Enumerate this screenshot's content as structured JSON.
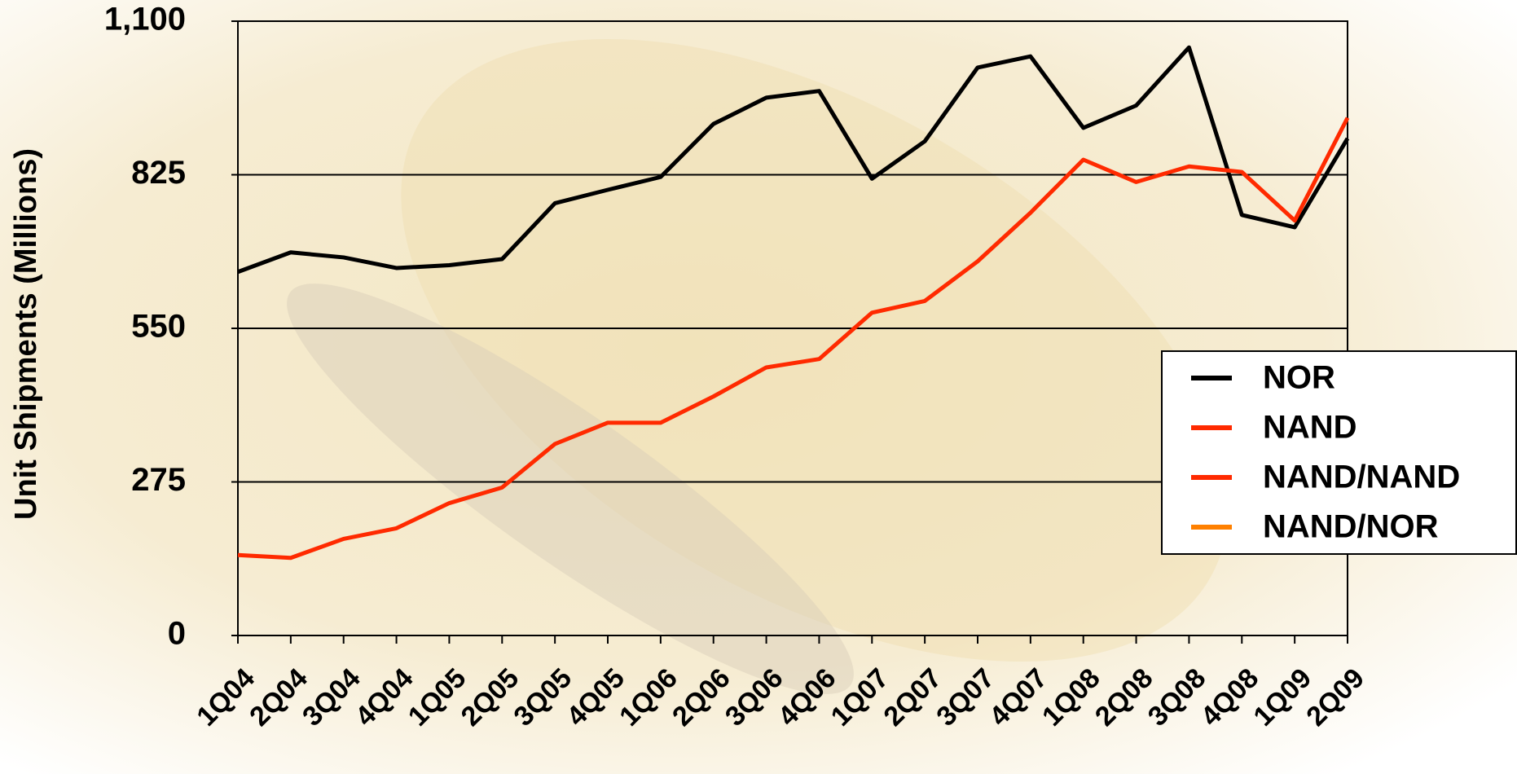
{
  "chart_data": {
    "type": "line",
    "y_label": "Unit Shipments (Millions)",
    "categories": [
      "1Q04",
      "2Q04",
      "3Q04",
      "4Q04",
      "1Q05",
      "2Q05",
      "3Q05",
      "4Q05",
      "1Q06",
      "2Q06",
      "3Q06",
      "4Q06",
      "1Q07",
      "2Q07",
      "3Q07",
      "4Q07",
      "1Q08",
      "2Q08",
      "3Q08",
      "4Q08",
      "1Q09",
      "2Q09"
    ],
    "series": [
      {
        "name": "NOR",
        "color": "#000000",
        "values": [
          651,
          686,
          677,
          658,
          663,
          674,
          774,
          798,
          821,
          916,
          963,
          975,
          818,
          885,
          1017,
          1037,
          909,
          949,
          1053,
          753,
          731,
          890
        ]
      },
      {
        "name": "NAND",
        "color": "#ff2a00",
        "values": [
          144,
          139,
          173,
          192,
          237,
          265,
          343,
          381,
          381,
          428,
          480,
          495,
          578,
          599,
          670,
          757,
          852,
          812,
          840,
          830,
          743,
          927
        ]
      },
      {
        "name": "NAND/NAND",
        "color": "#ff2a00",
        "values": [
          null,
          null,
          null,
          null,
          null,
          null,
          null,
          null,
          null,
          null,
          null,
          null,
          null,
          null,
          null,
          null,
          null,
          null,
          null,
          null,
          null,
          null
        ]
      },
      {
        "name": "NAND/NOR",
        "color": "#ff8000",
        "values": [
          null,
          null,
          null,
          null,
          null,
          null,
          null,
          null,
          null,
          null,
          null,
          null,
          null,
          null,
          null,
          null,
          null,
          null,
          null,
          null,
          null,
          null
        ]
      }
    ],
    "ylim": [
      0,
      1100
    ],
    "yticks": [
      0,
      275,
      550,
      825,
      {
        "value": 1100,
        "label": "1,100"
      }
    ],
    "grid": true,
    "legend": "right"
  }
}
